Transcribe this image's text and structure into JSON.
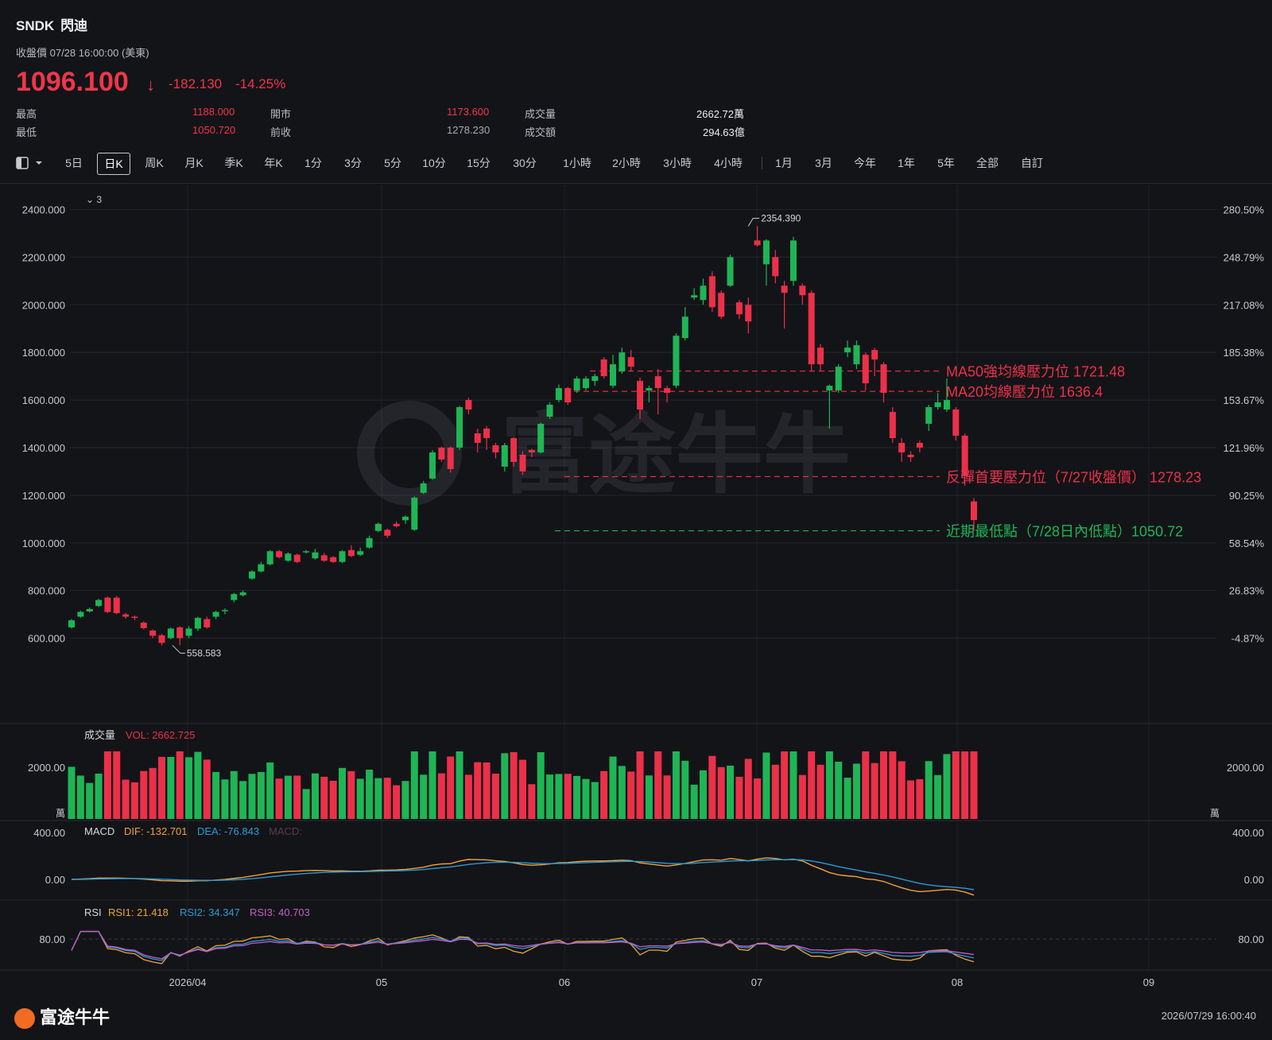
{
  "header": {
    "symbol": "SNDK",
    "name": "閃迪",
    "close_info": "收盤價 07/28 16:00:00 (美東)",
    "price": "1096.100",
    "change": "-182.130",
    "change_pct": "-14.25%",
    "stats": [
      {
        "label": "最高",
        "value": "1188.000",
        "color": "red"
      },
      {
        "label": "最低",
        "value": "1050.720",
        "color": "red"
      },
      {
        "label": "開市",
        "value": "1173.600",
        "color": "red"
      },
      {
        "label": "前收",
        "value": "1278.230",
        "color": "gray"
      },
      {
        "label": "成交量",
        "value": "2662.72萬",
        "color": "white"
      },
      {
        "label": "成交額",
        "value": "294.63億",
        "color": "white"
      }
    ]
  },
  "toolbar": {
    "items": [
      "5日",
      "日K",
      "周K",
      "月K",
      "季K",
      "年K",
      "1分",
      "3分",
      "5分",
      "10分",
      "15分",
      "30分",
      "1小時",
      "2小時",
      "3小時",
      "4小時",
      "1月",
      "3月",
      "今年",
      "1年",
      "5年",
      "全部",
      "自訂"
    ],
    "active": "日K",
    "collapse_label": "3"
  },
  "colors": {
    "up": "#1fb556",
    "down": "#ec3049",
    "ma50": "#ec3049",
    "low_line": "#1fb556",
    "dif": "#f0a23a",
    "dea": "#2d9ad6",
    "rsi1": "#f0a23a",
    "rsi2": "#2d9ad6",
    "rsi3": "#c25fc9"
  },
  "chart_data": {
    "type": "candlestick",
    "y_axis_left": [
      "2400.000",
      "2200.000",
      "2000.000",
      "1800.000",
      "1600.000",
      "1400.000",
      "1200.000",
      "1000.000",
      "800.000",
      "600.000"
    ],
    "y_axis_right": [
      "280.50%",
      "248.79%",
      "217.08%",
      "185.38%",
      "153.67%",
      "121.96%",
      "90.25%",
      "58.54%",
      "26.83%",
      "-4.87%"
    ],
    "ylim": [
      485,
      2445
    ],
    "x_ticks": [
      "2026/04",
      "05",
      "06",
      "07",
      "08",
      "09"
    ],
    "high_marker": "2354.390",
    "low_marker": "558.583",
    "candles": [
      [
        645,
        675,
        640,
        680
      ],
      [
        690,
        710,
        685,
        715
      ],
      [
        712,
        722,
        708,
        728
      ],
      [
        735,
        760,
        730,
        765
      ],
      [
        770,
        710,
        705,
        775
      ],
      [
        770,
        705,
        700,
        778
      ],
      [
        700,
        690,
        682,
        706
      ],
      [
        690,
        685,
        675,
        695
      ],
      [
        665,
        642,
        636,
        670
      ],
      [
        632,
        610,
        600,
        636
      ],
      [
        612,
        580,
        570,
        618
      ],
      [
        600,
        640,
        595,
        645
      ],
      [
        645,
        600,
        570,
        650
      ],
      [
        610,
        640,
        600,
        650
      ],
      [
        640,
        685,
        630,
        690
      ],
      [
        680,
        645,
        640,
        690
      ],
      [
        690,
        710,
        680,
        715
      ],
      [
        715,
        718,
        700,
        725
      ],
      [
        760,
        785,
        750,
        790
      ],
      [
        780,
        792,
        775,
        800
      ],
      [
        850,
        880,
        845,
        885
      ],
      [
        880,
        910,
        875,
        920
      ],
      [
        910,
        965,
        905,
        970
      ],
      [
        965,
        940,
        935,
        970
      ],
      [
        925,
        955,
        920,
        960
      ],
      [
        950,
        920,
        915,
        955
      ],
      [
        960,
        965,
        955,
        970
      ],
      [
        935,
        960,
        930,
        975
      ],
      [
        948,
        925,
        920,
        958
      ],
      [
        940,
        920,
        915,
        945
      ],
      [
        920,
        965,
        915,
        970
      ],
      [
        970,
        945,
        940,
        990
      ],
      [
        950,
        965,
        945,
        980
      ],
      [
        980,
        1020,
        975,
        1030
      ],
      [
        1050,
        1080,
        1045,
        1085
      ],
      [
        1055,
        1030,
        1020,
        1060
      ],
      [
        1080,
        1070,
        1065,
        1090
      ],
      [
        1095,
        1110,
        1080,
        1115
      ],
      [
        1055,
        1190,
        1050,
        1195
      ],
      [
        1210,
        1250,
        1205,
        1260
      ],
      [
        1270,
        1380,
        1265,
        1390
      ],
      [
        1400,
        1350,
        1340,
        1405
      ],
      [
        1400,
        1310,
        1295,
        1405
      ],
      [
        1400,
        1570,
        1390,
        1575
      ],
      [
        1600,
        1560,
        1540,
        1610
      ],
      [
        1460,
        1420,
        1380,
        1480
      ],
      [
        1480,
        1440,
        1390,
        1490
      ],
      [
        1410,
        1380,
        1355,
        1420
      ],
      [
        1320,
        1410,
        1300,
        1420
      ],
      [
        1440,
        1340,
        1320,
        1445
      ],
      [
        1370,
        1300,
        1285,
        1385
      ],
      [
        1390,
        1380,
        1360,
        1395
      ],
      [
        1380,
        1500,
        1375,
        1505
      ],
      [
        1530,
        1580,
        1520,
        1590
      ],
      [
        1600,
        1650,
        1590,
        1665
      ],
      [
        1650,
        1590,
        1580,
        1655
      ],
      [
        1640,
        1690,
        1630,
        1700
      ],
      [
        1650,
        1690,
        1640,
        1700
      ],
      [
        1680,
        1700,
        1660,
        1710
      ],
      [
        1770,
        1700,
        1690,
        1780
      ],
      [
        1660,
        1750,
        1650,
        1790
      ],
      [
        1720,
        1800,
        1710,
        1820
      ],
      [
        1780,
        1740,
        1720,
        1810
      ],
      [
        1680,
        1560,
        1520,
        1695
      ],
      [
        1640,
        1650,
        1590,
        1660
      ],
      [
        1700,
        1650,
        1540,
        1730
      ],
      [
        1650,
        1630,
        1590,
        1660
      ],
      [
        1660,
        1870,
        1650,
        1880
      ],
      [
        1860,
        1950,
        1850,
        1990
      ],
      [
        2030,
        2040,
        2020,
        2070
      ],
      [
        2020,
        2080,
        2000,
        2110
      ],
      [
        2120,
        1990,
        1970,
        2140
      ],
      [
        2050,
        1950,
        1940,
        2060
      ],
      [
        2080,
        2200,
        2075,
        2210
      ],
      [
        2010,
        1960,
        1940,
        2020
      ],
      [
        2000,
        1930,
        1880,
        2030
      ],
      [
        2270,
        2250,
        2245,
        2330
      ],
      [
        2170,
        2270,
        2080,
        2275
      ],
      [
        2200,
        2120,
        2090,
        2230
      ],
      [
        2080,
        2050,
        1900,
        2100
      ],
      [
        2100,
        2270,
        2080,
        2285
      ],
      [
        2080,
        2040,
        2000,
        2090
      ],
      [
        2050,
        1750,
        1720,
        2060
      ],
      [
        1820,
        1750,
        1720,
        1835
      ],
      [
        1640,
        1660,
        1480,
        1665
      ],
      [
        1640,
        1740,
        1630,
        1750
      ],
      [
        1800,
        1820,
        1780,
        1850
      ],
      [
        1750,
        1830,
        1730,
        1850
      ],
      [
        1790,
        1670,
        1640,
        1800
      ],
      [
        1810,
        1770,
        1700,
        1820
      ],
      [
        1750,
        1630,
        1590,
        1760
      ],
      [
        1550,
        1440,
        1420,
        1570
      ],
      [
        1420,
        1380,
        1340,
        1440
      ],
      [
        1370,
        1360,
        1340,
        1385
      ],
      [
        1420,
        1400,
        1380,
        1430
      ],
      [
        1500,
        1570,
        1470,
        1580
      ],
      [
        1570,
        1590,
        1560,
        1630
      ],
      [
        1560,
        1600,
        1550,
        1690
      ],
      [
        1560,
        1450,
        1430,
        1570
      ],
      [
        1450,
        1280,
        1240,
        1460
      ],
      [
        1174,
        1096,
        1051,
        1188
      ]
    ],
    "annotations": [
      {
        "label": "MA50強均線壓力位 1721.48",
        "value": 1721.48,
        "color": "red"
      },
      {
        "label": "MA20均線壓力位 1636.4",
        "value": 1636.4,
        "color": "red"
      },
      {
        "label": "反彈首要壓力位（7/27收盤價） 1278.23",
        "value": 1278.23,
        "color": "red"
      },
      {
        "label": "近期最低點（7/28日內低點）1050.72",
        "value": 1050.72,
        "color": "green"
      }
    ],
    "volume": {
      "title": "成交量",
      "value_label": "VOL: 2662.725",
      "y_label": "2000.00",
      "unit": "萬",
      "ylim": [
        0,
        2800
      ]
    },
    "macd": {
      "title": "MACD",
      "dif_label": "DIF: -132.701",
      "dea_label": "DEA: -76.843",
      "macd_label": "MACD:",
      "y_labels": [
        "400.00",
        "0.00"
      ],
      "ylim": [
        -200,
        400
      ]
    },
    "rsi": {
      "title": "RSI",
      "rsi1_label": "RSI1: 21.418",
      "rsi2_label": "RSI2: 34.347",
      "rsi3_label": "RSI3: 40.703",
      "y_label": "80.00",
      "ylim": [
        0,
        100
      ]
    }
  },
  "footer": {
    "brand": "富途牛牛",
    "timestamp": "2026/07/29 16:00:40"
  }
}
